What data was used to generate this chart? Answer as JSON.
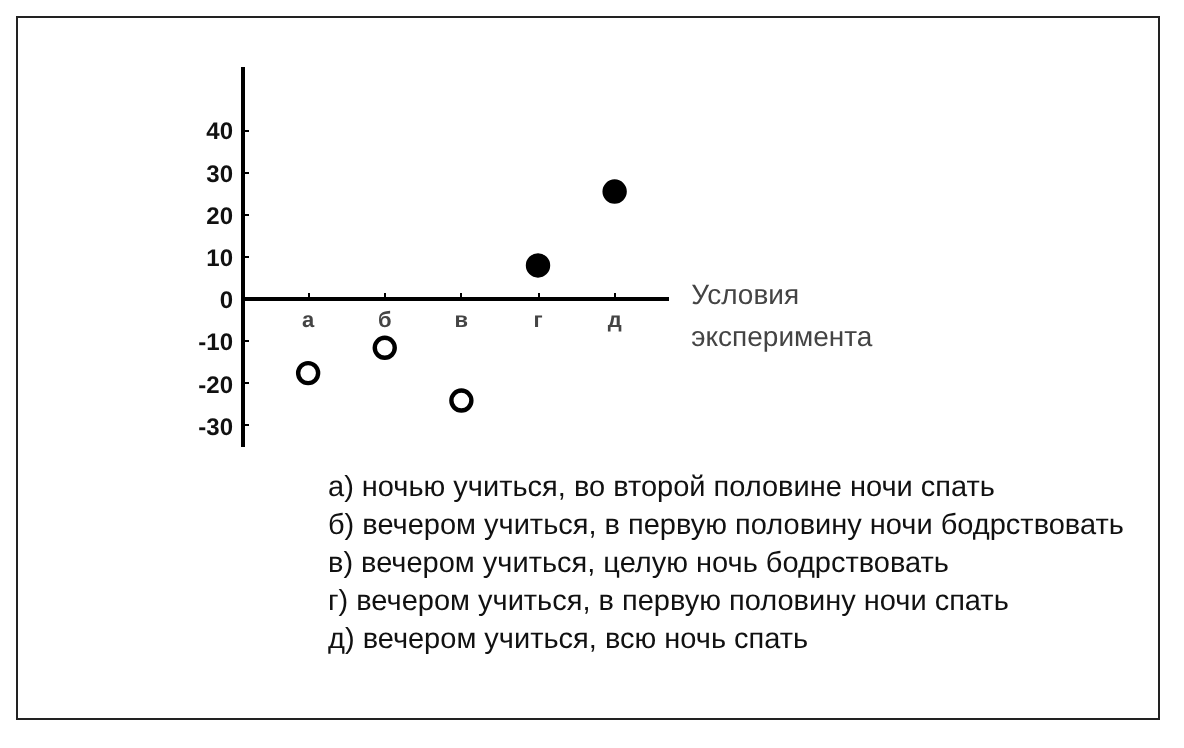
{
  "chart_data": {
    "type": "scatter",
    "xlabel": "Условия эксперимента",
    "categories": [
      "а",
      "б",
      "в",
      "г",
      "д"
    ],
    "series": [
      {
        "color": "#ffffff",
        "values": [
          -17.5,
          -11.5,
          -24,
          null,
          null
        ]
      },
      {
        "color": "#000000",
        "values": [
          null,
          null,
          null,
          8,
          25.5
        ]
      }
    ],
    "ylim": [
      -35,
      55
    ],
    "yticks": [
      -30,
      -20,
      -10,
      0,
      10,
      20,
      30,
      40
    ],
    "marker": "circle",
    "grid": false,
    "annotations": [
      "а) ночью учиться, во второй половине ночи спать",
      "б) вечером учиться, в первую половину ночи бодрствовать",
      "в) вечером учиться, целую ночь бодрствовать",
      "г) вечером учиться, в первую половину ночи спать",
      "д) вечером учиться, всю ночь спать"
    ]
  }
}
